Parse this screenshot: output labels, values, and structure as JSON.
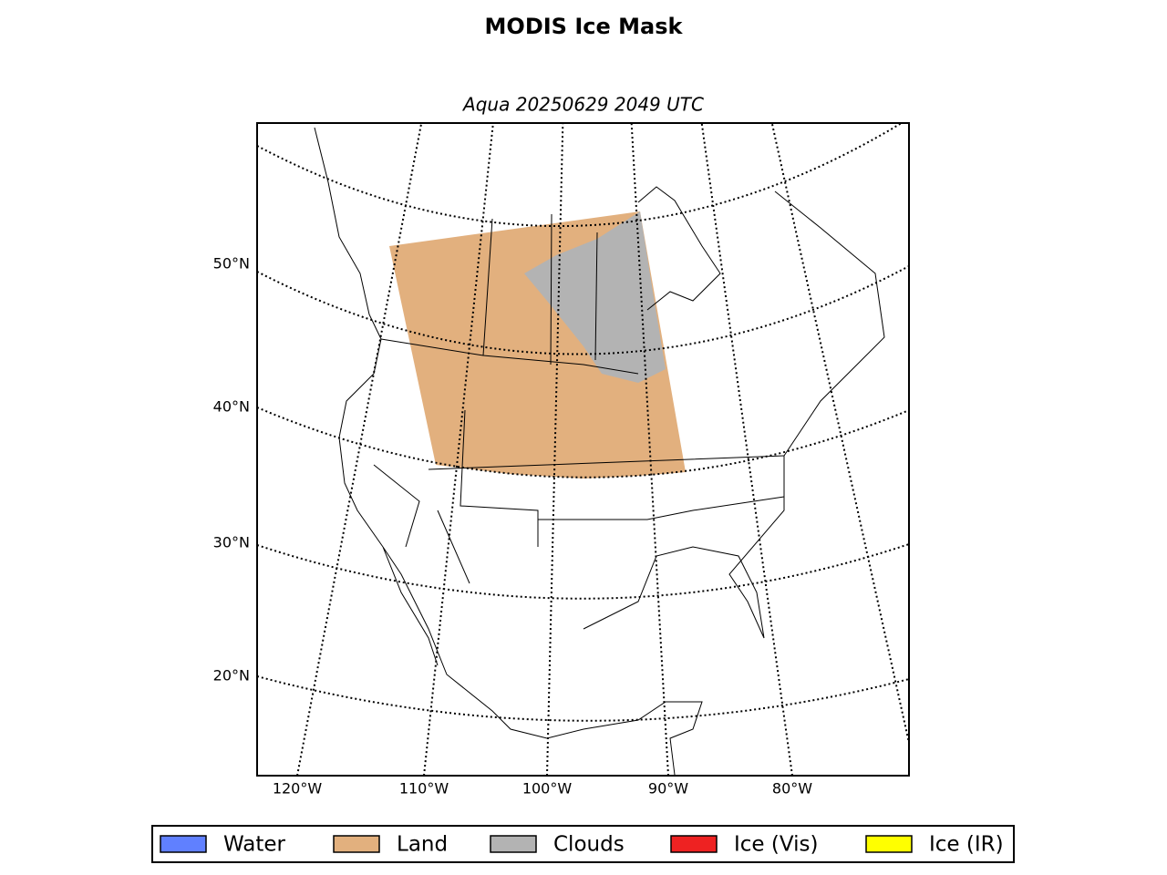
{
  "title": "MODIS Ice Mask",
  "subtitle": "Aqua 20250629 2049 UTC",
  "map": {
    "latitude_labels": [
      "50°N",
      "40°N",
      "30°N",
      "20°N"
    ],
    "longitude_labels": [
      "120°W",
      "110°W",
      "100°W",
      "90°W",
      "80°W"
    ]
  },
  "legend": [
    {
      "label": "Water",
      "color": "#6080ff"
    },
    {
      "label": "Land",
      "color": "#e2b07e"
    },
    {
      "label": "Clouds",
      "color": "#b3b3b3"
    },
    {
      "label": "Ice (Vis)",
      "color": "#ee2222"
    },
    {
      "label": "Ice (IR)",
      "color": "#ffff00"
    }
  ]
}
